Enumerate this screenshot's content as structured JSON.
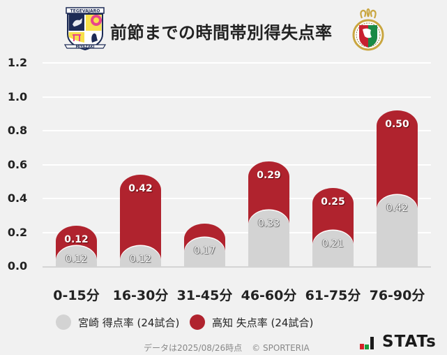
{
  "header": {
    "title": "前節までの時間帯別得失点率",
    "home_logo": "miyazaki-crest",
    "away_logo": "kochi-crest"
  },
  "chart_data": {
    "type": "bar",
    "stacked": true,
    "title": "前節までの時間帯別得失点率",
    "xlabel": "",
    "ylabel": "",
    "ylim": [
      0,
      1.2
    ],
    "yticks": [
      "0.0",
      "0.2",
      "0.4",
      "0.6",
      "0.8",
      "1.0",
      "1.2"
    ],
    "grid": true,
    "legend_position": "bottom",
    "categories": [
      "0-15分",
      "16-30分",
      "31-45分",
      "46-60分",
      "61-75分",
      "76-90分"
    ],
    "series": [
      {
        "name": "宮崎 得点率 (24試合)",
        "color": "#d3d3d3",
        "values": [
          0.12,
          0.12,
          0.17,
          0.33,
          0.21,
          0.42
        ],
        "labels": [
          "0.12",
          "0.12",
          "0.17",
          "0.33",
          "0.21",
          "0.42"
        ]
      },
      {
        "name": "高知 失点率 (24試合)",
        "color": "#b0232e",
        "values": [
          0.12,
          0.42,
          0.08,
          0.29,
          0.25,
          0.5
        ],
        "labels": [
          "0.12",
          "0.42",
          "",
          "0.29",
          "0.25",
          "0.50"
        ]
      }
    ]
  },
  "legend": [
    {
      "label": "宮崎 得点率 (24試合)",
      "color": "#d3d3d3"
    },
    {
      "label": "高知 失点率 (24試合)",
      "color": "#b0232e"
    }
  ],
  "footer": {
    "note": "データは2025/08/26時点",
    "copyright": "© SPORTERIA",
    "brand": "STATs",
    "brand_colors": {
      "red": "#d42027",
      "green": "#1a9a3c",
      "black": "#1a1a1a"
    }
  }
}
